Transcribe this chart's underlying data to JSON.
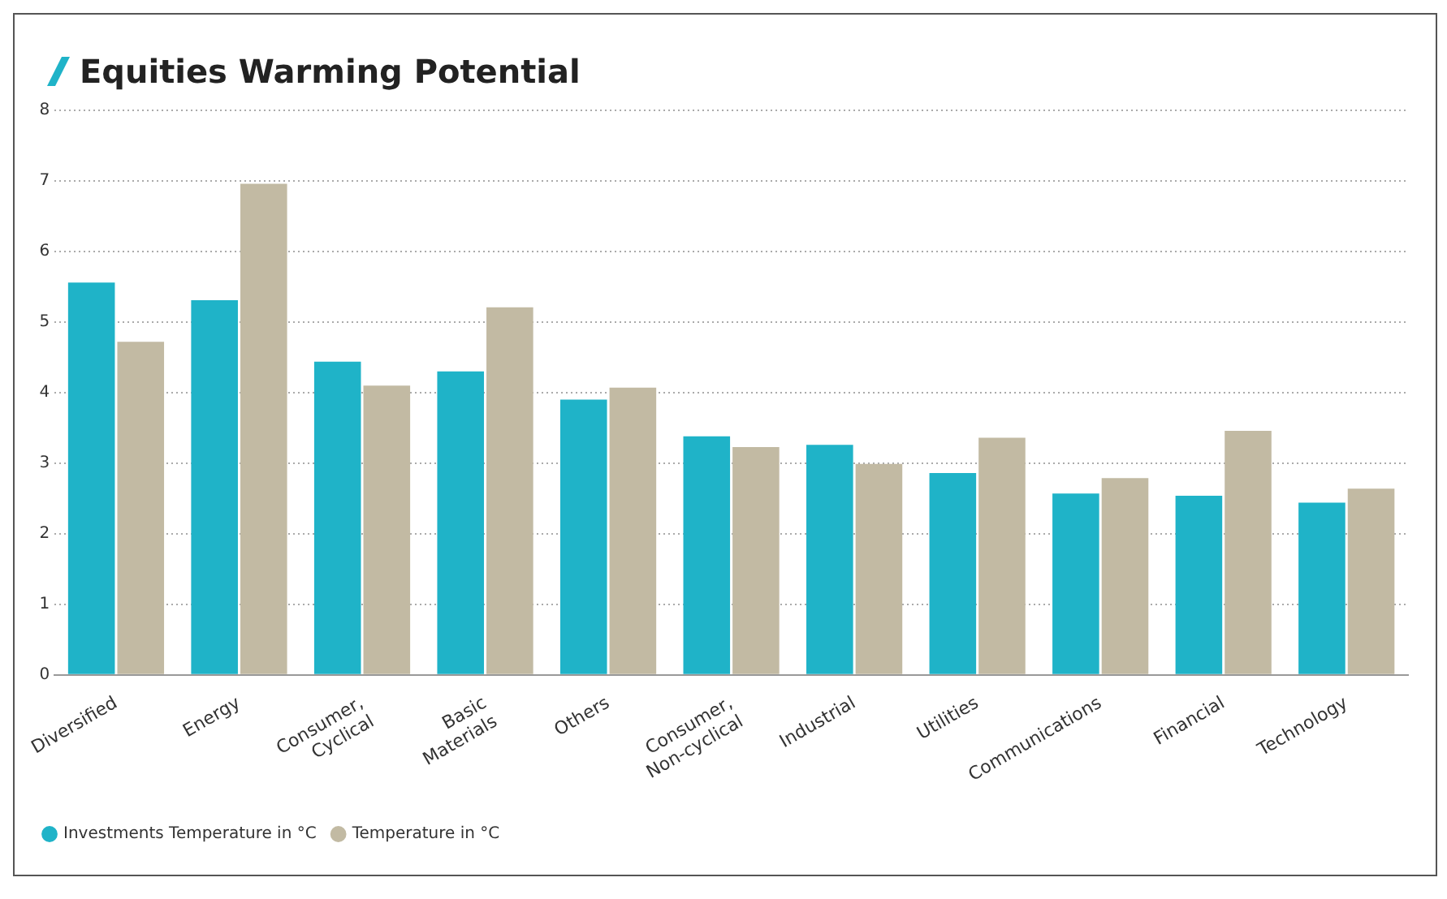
{
  "chart_data": {
    "type": "bar",
    "title": "Equities Warming Potential",
    "categories": [
      "Diversified",
      "Energy",
      "Consumer, Cyclical",
      "Basic Materials",
      "Others",
      "Consumer, Non-cyclical",
      "Industrial",
      "Utilities",
      "Communications",
      "Financial",
      "Technology"
    ],
    "series": [
      {
        "name": "Investments Temperature in °C",
        "color": "#1fb3c8",
        "values": [
          5.56,
          5.31,
          4.44,
          4.3,
          3.9,
          3.38,
          3.26,
          2.86,
          2.57,
          2.54,
          2.44
        ]
      },
      {
        "name": "Temperature in °C",
        "color": "#c2baa3",
        "values": [
          4.72,
          6.96,
          4.1,
          5.21,
          4.07,
          3.23,
          2.99,
          3.36,
          2.79,
          3.46,
          2.64
        ]
      }
    ],
    "ylim": [
      0,
      8
    ],
    "yticks": [
      0,
      1,
      2,
      3,
      4,
      5,
      6,
      7,
      8
    ],
    "grid": "y",
    "legend": "bottom left"
  }
}
